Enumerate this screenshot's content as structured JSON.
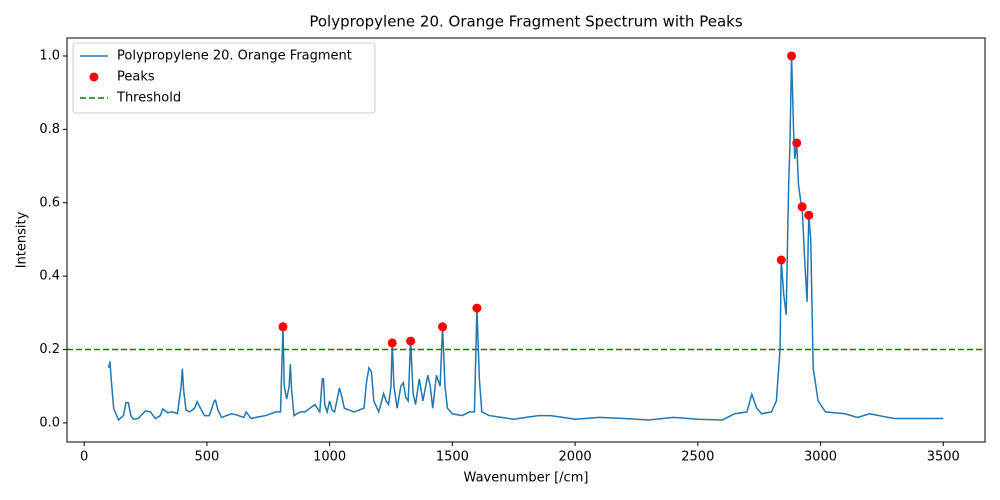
{
  "chart_data": {
    "type": "line",
    "title": "Polypropylene 20. Orange Fragment Spectrum with Peaks",
    "xlabel": "Wavenumber [/cm]",
    "ylabel": "Intensity",
    "xlim": [
      -70,
      3670
    ],
    "ylim": [
      -0.052,
      1.049
    ],
    "xticks": [
      0,
      500,
      1000,
      1500,
      2000,
      2500,
      3000,
      3500
    ],
    "yticks": [
      {
        "value": 0,
        "label": "0.0"
      },
      0.2,
      0.4,
      0.6,
      0.8,
      {
        "value": 1,
        "label": "1.0"
      }
    ],
    "grid": false,
    "legend": "upper left",
    "series": [
      {
        "name": "Polypropylene 20. Orange Fragment",
        "type": "line",
        "color": "#1f77b4",
        "x": [
          100,
          105,
          110,
          120,
          140,
          160,
          170,
          180,
          190,
          200,
          220,
          250,
          270,
          290,
          310,
          320,
          340,
          360,
          380,
          395,
          400,
          405,
          415,
          430,
          450,
          460,
          470,
          490,
          510,
          530,
          535,
          545,
          560,
          600,
          620,
          650,
          660,
          680,
          700,
          740,
          780,
          800,
          805,
          810,
          815,
          825,
          835,
          840,
          845,
          855,
          880,
          900,
          940,
          960,
          970,
          975,
          980,
          990,
          1000,
          1010,
          1020,
          1040,
          1050,
          1060,
          1100,
          1140,
          1150,
          1160,
          1170,
          1180,
          1200,
          1220,
          1230,
          1240,
          1250,
          1255,
          1262,
          1275,
          1290,
          1300,
          1310,
          1320,
          1330,
          1340,
          1350,
          1365,
          1380,
          1400,
          1410,
          1420,
          1435,
          1450,
          1460,
          1470,
          1480,
          1500,
          1540,
          1570,
          1590,
          1600,
          1610,
          1620,
          1650,
          1700,
          1750,
          1800,
          1850,
          1900,
          1950,
          2000,
          2100,
          2200,
          2300,
          2400,
          2500,
          2600,
          2650,
          2700,
          2720,
          2740,
          2760,
          2800,
          2820,
          2835,
          2840,
          2850,
          2860,
          2870,
          2875,
          2882,
          2890,
          2895,
          2903,
          2910,
          2920,
          2925,
          2935,
          2945,
          2952,
          2960,
          2970,
          2990,
          3020,
          3100,
          3150,
          3200,
          3300,
          3400,
          3500
        ],
        "values": [
          0.15,
          0.168,
          0.12,
          0.04,
          0.008,
          0.02,
          0.055,
          0.055,
          0.02,
          0.01,
          0.012,
          0.033,
          0.03,
          0.012,
          0.02,
          0.038,
          0.028,
          0.03,
          0.025,
          0.1,
          0.148,
          0.09,
          0.035,
          0.03,
          0.04,
          0.058,
          0.045,
          0.02,
          0.02,
          0.06,
          0.062,
          0.035,
          0.015,
          0.025,
          0.022,
          0.015,
          0.03,
          0.012,
          0.015,
          0.02,
          0.03,
          0.03,
          0.15,
          0.262,
          0.1,
          0.065,
          0.1,
          0.16,
          0.09,
          0.02,
          0.03,
          0.03,
          0.05,
          0.03,
          0.12,
          0.12,
          0.05,
          0.03,
          0.06,
          0.035,
          0.03,
          0.095,
          0.07,
          0.04,
          0.03,
          0.04,
          0.11,
          0.15,
          0.14,
          0.06,
          0.03,
          0.08,
          0.06,
          0.05,
          0.1,
          0.218,
          0.1,
          0.04,
          0.1,
          0.11,
          0.07,
          0.06,
          0.223,
          0.08,
          0.05,
          0.12,
          0.06,
          0.13,
          0.1,
          0.04,
          0.13,
          0.1,
          0.262,
          0.1,
          0.04,
          0.025,
          0.02,
          0.03,
          0.03,
          0.313,
          0.12,
          0.03,
          0.02,
          0.015,
          0.01,
          0.015,
          0.02,
          0.02,
          0.015,
          0.01,
          0.015,
          0.012,
          0.008,
          0.015,
          0.01,
          0.008,
          0.025,
          0.03,
          0.078,
          0.04,
          0.025,
          0.03,
          0.06,
          0.2,
          0.444,
          0.35,
          0.295,
          0.65,
          0.75,
          1.0,
          0.8,
          0.72,
          0.763,
          0.65,
          0.6,
          0.589,
          0.45,
          0.33,
          0.566,
          0.5,
          0.15,
          0.06,
          0.03,
          0.025,
          0.015,
          0.025,
          0.012,
          0.012,
          0.012
        ]
      },
      {
        "name": "Peaks",
        "type": "scatter",
        "color": "#ff0000",
        "x": [
          810,
          1255,
          1330,
          1460,
          1600,
          2840,
          2882,
          2903,
          2925,
          2952
        ],
        "values": [
          0.262,
          0.218,
          0.223,
          0.262,
          0.313,
          0.444,
          1.0,
          0.763,
          0.589,
          0.566
        ]
      },
      {
        "name": "Threshold",
        "type": "hline",
        "color": "#008000",
        "linestyle": "dashed",
        "values": [
          0.2
        ]
      }
    ]
  }
}
